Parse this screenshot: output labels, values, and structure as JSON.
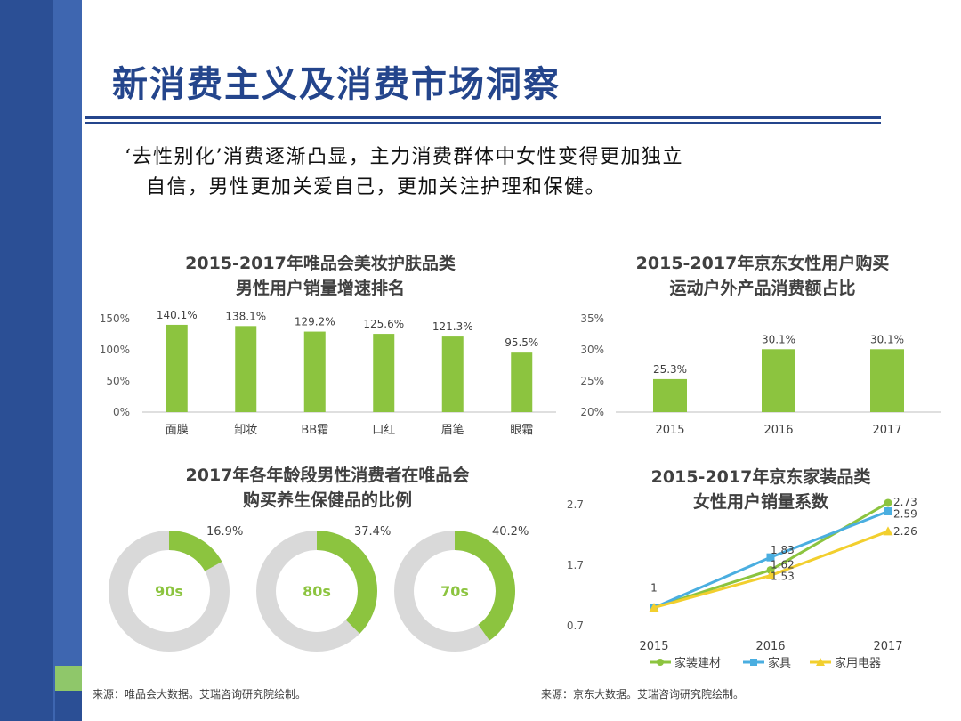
{
  "slide": {
    "title": "新消费主义及消费市场洞察",
    "body_line1": "‘去性别化’消费逐渐凸显，主力消费群体中女性变得更加独立",
    "body_line2": "自信，男性更加关爱自己，更加关注护理和保健。",
    "source_left": "来源：唯品会大数据。艾瑞咨询研究院绘制。",
    "source_right": "来源：京东大数据。艾瑞咨询研究院绘制。"
  },
  "colors": {
    "sidebar": "#2b4f95",
    "title": "#24458c",
    "green": "#8cc43f",
    "blue": "#4aaee0",
    "yellow": "#f2cf2e",
    "gray": "#d9d9d9"
  },
  "chart_data": [
    {
      "type": "bar",
      "title_line1": "2015-2017年唯品会美妆护肤品类",
      "title_line2": "男性用户销量增速排名",
      "categories": [
        "面膜",
        "卸妆",
        "BB霜",
        "口红",
        "眉笔",
        "眼霜"
      ],
      "values": [
        140.1,
        138.1,
        129.2,
        125.6,
        121.3,
        95.5
      ],
      "value_labels": [
        "140.1%",
        "138.1%",
        "129.2%",
        "125.6%",
        "121.3%",
        "95.5%"
      ],
      "ylim": [
        0,
        150
      ],
      "yticks": [
        "150%",
        "100%",
        "50%",
        "0%"
      ],
      "color": "#8cc43f"
    },
    {
      "type": "bar",
      "title_line1": "2015-2017年京东女性用户购买",
      "title_line2": "运动户外产品消费额占比",
      "categories": [
        "2015",
        "2016",
        "2017"
      ],
      "values": [
        25.3,
        30.1,
        30.1
      ],
      "value_labels": [
        "25.3%",
        "30.1%",
        "30.1%"
      ],
      "ylim": [
        20,
        35
      ],
      "yticks": [
        "35%",
        "30%",
        "25%",
        "20%"
      ],
      "color": "#8cc43f"
    },
    {
      "type": "pie",
      "title_line1": "2017年各年龄段男性消费者在唯品会",
      "title_line2": "购买养生保健品的比例",
      "rings": [
        {
          "label": "90s",
          "value": 16.9,
          "value_label": "16.9%"
        },
        {
          "label": "80s",
          "value": 37.4,
          "value_label": "37.4%"
        },
        {
          "label": "70s",
          "value": 40.2,
          "value_label": "40.2%"
        }
      ],
      "color": "#8cc43f",
      "track_color": "#d9d9d9"
    },
    {
      "type": "line",
      "title_line1": "2015-2017年京东家装品类",
      "title_line2": "女性用户销量系数",
      "x": [
        "2015",
        "2016",
        "2017"
      ],
      "ylim": [
        0.7,
        2.7
      ],
      "yticks": [
        "2.7",
        "1.7",
        "0.7"
      ],
      "series": [
        {
          "name": "家装建材",
          "values": [
            1,
            1.62,
            2.73
          ],
          "color": "#8cc43f",
          "marker": "circle"
        },
        {
          "name": "家具",
          "values": [
            1,
            1.83,
            2.59
          ],
          "color": "#4aaee0",
          "marker": "square"
        },
        {
          "name": "家用电器",
          "values": [
            1,
            1.53,
            2.26
          ],
          "color": "#f2cf2e",
          "marker": "triangle"
        }
      ],
      "point_labels": [
        {
          "text": "1",
          "series": 0,
          "index": 0
        },
        {
          "text": "1.83",
          "series": 1,
          "index": 1
        },
        {
          "text": "1.62",
          "series": 0,
          "index": 1
        },
        {
          "text": "1.53",
          "series": 2,
          "index": 1
        },
        {
          "text": "2.73",
          "series": 0,
          "index": 2
        },
        {
          "text": "2.59",
          "series": 1,
          "index": 2
        },
        {
          "text": "2.26",
          "series": 2,
          "index": 2
        }
      ],
      "legend": "bottom"
    }
  ]
}
